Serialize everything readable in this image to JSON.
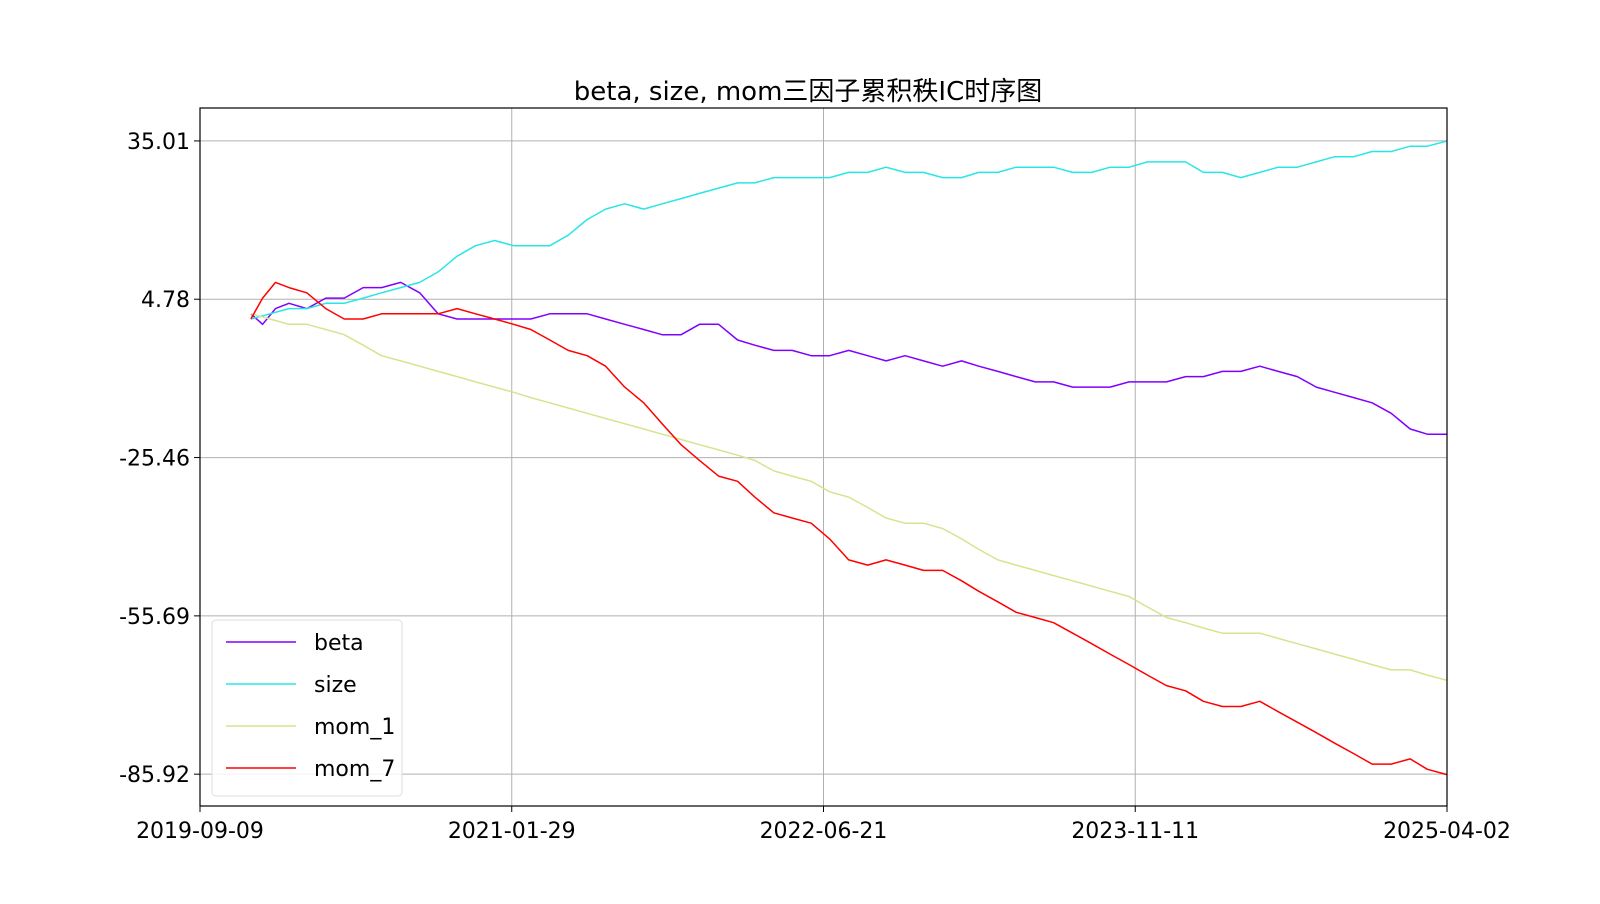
{
  "chart_data": {
    "type": "line",
    "title": "beta, size, mom三因子累积秩IC时序图",
    "xlabel": "",
    "ylabel": "",
    "x_ticks": [
      "2019-09-09",
      "2021-01-29",
      "2022-06-21",
      "2023-11-11",
      "2025-04-02"
    ],
    "y_ticks": [
      35.01,
      4.78,
      -25.46,
      -55.69,
      -85.92
    ],
    "y_tick_labels": [
      "35.01",
      "4.78",
      "-25.46",
      "-55.69",
      "-85.92"
    ],
    "xlim": [
      "2019-09-09",
      "2025-04-02"
    ],
    "ylim": [
      -92,
      41.3
    ],
    "grid": true,
    "legend_position": "lower-left",
    "series": [
      {
        "name": "beta",
        "color": "#8000ff",
        "points": [
          [
            "2019-12-01",
            2
          ],
          [
            "2019-12-20",
            0
          ],
          [
            "2020-01-10",
            3
          ],
          [
            "2020-02-01",
            4
          ],
          [
            "2020-03-01",
            3
          ],
          [
            "2020-04-01",
            5
          ],
          [
            "2020-05-01",
            5
          ],
          [
            "2020-06-01",
            7
          ],
          [
            "2020-07-01",
            7
          ],
          [
            "2020-08-01",
            8
          ],
          [
            "2020-09-01",
            6
          ],
          [
            "2020-10-01",
            2
          ],
          [
            "2020-11-01",
            1
          ],
          [
            "2020-12-01",
            1
          ],
          [
            "2021-01-01",
            1
          ],
          [
            "2021-02-01",
            1
          ],
          [
            "2021-03-01",
            1
          ],
          [
            "2021-04-01",
            2
          ],
          [
            "2021-05-01",
            2
          ],
          [
            "2021-06-01",
            2
          ],
          [
            "2021-07-01",
            1
          ],
          [
            "2021-08-01",
            0
          ],
          [
            "2021-09-01",
            -1
          ],
          [
            "2021-10-01",
            -2
          ],
          [
            "2021-11-01",
            -2
          ],
          [
            "2021-12-01",
            0
          ],
          [
            "2022-01-01",
            0
          ],
          [
            "2022-02-01",
            -3
          ],
          [
            "2022-03-01",
            -4
          ],
          [
            "2022-04-01",
            -5
          ],
          [
            "2022-05-01",
            -5
          ],
          [
            "2022-06-01",
            -6
          ],
          [
            "2022-07-01",
            -6
          ],
          [
            "2022-08-01",
            -5
          ],
          [
            "2022-09-01",
            -6
          ],
          [
            "2022-10-01",
            -7
          ],
          [
            "2022-11-01",
            -6
          ],
          [
            "2022-12-01",
            -7
          ],
          [
            "2023-01-01",
            -8
          ],
          [
            "2023-02-01",
            -7
          ],
          [
            "2023-03-01",
            -8
          ],
          [
            "2023-04-01",
            -9
          ],
          [
            "2023-05-01",
            -10
          ],
          [
            "2023-06-01",
            -11
          ],
          [
            "2023-07-01",
            -11
          ],
          [
            "2023-08-01",
            -12
          ],
          [
            "2023-09-01",
            -12
          ],
          [
            "2023-10-01",
            -12
          ],
          [
            "2023-11-01",
            -11
          ],
          [
            "2023-12-01",
            -11
          ],
          [
            "2024-01-01",
            -11
          ],
          [
            "2024-02-01",
            -10
          ],
          [
            "2024-03-01",
            -10
          ],
          [
            "2024-04-01",
            -9
          ],
          [
            "2024-05-01",
            -9
          ],
          [
            "2024-06-01",
            -8
          ],
          [
            "2024-07-01",
            -9
          ],
          [
            "2024-08-01",
            -10
          ],
          [
            "2024-09-01",
            -12
          ],
          [
            "2024-10-01",
            -13
          ],
          [
            "2024-11-01",
            -14
          ],
          [
            "2024-12-01",
            -15
          ],
          [
            "2025-01-01",
            -17
          ],
          [
            "2025-02-01",
            -20
          ],
          [
            "2025-03-01",
            -21
          ],
          [
            "2025-04-02",
            -21
          ]
        ]
      },
      {
        "name": "size",
        "color": "#29e6e6",
        "points": [
          [
            "2019-12-01",
            1
          ],
          [
            "2020-01-01",
            2
          ],
          [
            "2020-02-01",
            3
          ],
          [
            "2020-03-01",
            3
          ],
          [
            "2020-04-01",
            4
          ],
          [
            "2020-05-01",
            4
          ],
          [
            "2020-06-01",
            5
          ],
          [
            "2020-07-01",
            6
          ],
          [
            "2020-08-01",
            7
          ],
          [
            "2020-09-01",
            8
          ],
          [
            "2020-10-01",
            10
          ],
          [
            "2020-11-01",
            13
          ],
          [
            "2020-12-01",
            15
          ],
          [
            "2021-01-01",
            16
          ],
          [
            "2021-02-01",
            15
          ],
          [
            "2021-03-01",
            15
          ],
          [
            "2021-04-01",
            15
          ],
          [
            "2021-05-01",
            17
          ],
          [
            "2021-06-01",
            20
          ],
          [
            "2021-07-01",
            22
          ],
          [
            "2021-08-01",
            23
          ],
          [
            "2021-09-01",
            22
          ],
          [
            "2021-10-01",
            23
          ],
          [
            "2021-11-01",
            24
          ],
          [
            "2021-12-01",
            25
          ],
          [
            "2022-01-01",
            26
          ],
          [
            "2022-02-01",
            27
          ],
          [
            "2022-03-01",
            27
          ],
          [
            "2022-04-01",
            28
          ],
          [
            "2022-05-01",
            28
          ],
          [
            "2022-06-01",
            28
          ],
          [
            "2022-07-01",
            28
          ],
          [
            "2022-08-01",
            29
          ],
          [
            "2022-09-01",
            29
          ],
          [
            "2022-10-01",
            30
          ],
          [
            "2022-11-01",
            29
          ],
          [
            "2022-12-01",
            29
          ],
          [
            "2023-01-01",
            28
          ],
          [
            "2023-02-01",
            28
          ],
          [
            "2023-03-01",
            29
          ],
          [
            "2023-04-01",
            29
          ],
          [
            "2023-05-01",
            30
          ],
          [
            "2023-06-01",
            30
          ],
          [
            "2023-07-01",
            30
          ],
          [
            "2023-08-01",
            29
          ],
          [
            "2023-09-01",
            29
          ],
          [
            "2023-10-01",
            30
          ],
          [
            "2023-11-01",
            30
          ],
          [
            "2023-12-01",
            31
          ],
          [
            "2024-01-01",
            31
          ],
          [
            "2024-02-01",
            31
          ],
          [
            "2024-03-01",
            29
          ],
          [
            "2024-04-01",
            29
          ],
          [
            "2024-05-01",
            28
          ],
          [
            "2024-06-01",
            29
          ],
          [
            "2024-07-01",
            30
          ],
          [
            "2024-08-01",
            30
          ],
          [
            "2024-09-01",
            31
          ],
          [
            "2024-10-01",
            32
          ],
          [
            "2024-11-01",
            32
          ],
          [
            "2024-12-01",
            33
          ],
          [
            "2025-01-01",
            33
          ],
          [
            "2025-02-01",
            34
          ],
          [
            "2025-03-01",
            34
          ],
          [
            "2025-04-02",
            35
          ]
        ]
      },
      {
        "name": "mom_1",
        "color": "#d2e68f",
        "points": [
          [
            "2019-12-01",
            2
          ],
          [
            "2020-01-01",
            1
          ],
          [
            "2020-02-01",
            0
          ],
          [
            "2020-03-01",
            0
          ],
          [
            "2020-04-01",
            -1
          ],
          [
            "2020-05-01",
            -2
          ],
          [
            "2020-06-01",
            -4
          ],
          [
            "2020-07-01",
            -6
          ],
          [
            "2020-08-01",
            -7
          ],
          [
            "2020-09-01",
            -8
          ],
          [
            "2020-10-01",
            -9
          ],
          [
            "2020-11-01",
            -10
          ],
          [
            "2020-12-01",
            -11
          ],
          [
            "2021-01-01",
            -12
          ],
          [
            "2021-02-01",
            -13
          ],
          [
            "2021-03-01",
            -14
          ],
          [
            "2021-04-01",
            -15
          ],
          [
            "2021-05-01",
            -16
          ],
          [
            "2021-06-01",
            -17
          ],
          [
            "2021-07-01",
            -18
          ],
          [
            "2021-08-01",
            -19
          ],
          [
            "2021-09-01",
            -20
          ],
          [
            "2021-10-01",
            -21
          ],
          [
            "2021-11-01",
            -22
          ],
          [
            "2021-12-01",
            -23
          ],
          [
            "2022-01-01",
            -24
          ],
          [
            "2022-02-01",
            -25
          ],
          [
            "2022-03-01",
            -26
          ],
          [
            "2022-04-01",
            -28
          ],
          [
            "2022-05-01",
            -29
          ],
          [
            "2022-06-01",
            -30
          ],
          [
            "2022-07-01",
            -32
          ],
          [
            "2022-08-01",
            -33
          ],
          [
            "2022-09-01",
            -35
          ],
          [
            "2022-10-01",
            -37
          ],
          [
            "2022-11-01",
            -38
          ],
          [
            "2022-12-01",
            -38
          ],
          [
            "2023-01-01",
            -39
          ],
          [
            "2023-02-01",
            -41
          ],
          [
            "2023-03-01",
            -43
          ],
          [
            "2023-04-01",
            -45
          ],
          [
            "2023-05-01",
            -46
          ],
          [
            "2023-06-01",
            -47
          ],
          [
            "2023-07-01",
            -48
          ],
          [
            "2023-08-01",
            -49
          ],
          [
            "2023-09-01",
            -50
          ],
          [
            "2023-10-01",
            -51
          ],
          [
            "2023-11-01",
            -52
          ],
          [
            "2023-12-01",
            -54
          ],
          [
            "2024-01-01",
            -56
          ],
          [
            "2024-02-01",
            -57
          ],
          [
            "2024-03-01",
            -58
          ],
          [
            "2024-04-01",
            -59
          ],
          [
            "2024-05-01",
            -59
          ],
          [
            "2024-06-01",
            -59
          ],
          [
            "2024-07-01",
            -60
          ],
          [
            "2024-08-01",
            -61
          ],
          [
            "2024-09-01",
            -62
          ],
          [
            "2024-10-01",
            -63
          ],
          [
            "2024-11-01",
            -64
          ],
          [
            "2024-12-01",
            -65
          ],
          [
            "2025-01-01",
            -66
          ],
          [
            "2025-02-01",
            -66
          ],
          [
            "2025-03-01",
            -67
          ],
          [
            "2025-04-02",
            -68
          ]
        ]
      },
      {
        "name": "mom_7",
        "color": "#ff0000",
        "points": [
          [
            "2019-12-01",
            1
          ],
          [
            "2019-12-20",
            5
          ],
          [
            "2020-01-10",
            8
          ],
          [
            "2020-02-01",
            7
          ],
          [
            "2020-03-01",
            6
          ],
          [
            "2020-04-01",
            3
          ],
          [
            "2020-05-01",
            1
          ],
          [
            "2020-06-01",
            1
          ],
          [
            "2020-07-01",
            2
          ],
          [
            "2020-08-01",
            2
          ],
          [
            "2020-09-01",
            2
          ],
          [
            "2020-10-01",
            2
          ],
          [
            "2020-11-01",
            3
          ],
          [
            "2020-12-01",
            2
          ],
          [
            "2021-01-01",
            1
          ],
          [
            "2021-02-01",
            0
          ],
          [
            "2021-03-01",
            -1
          ],
          [
            "2021-04-01",
            -3
          ],
          [
            "2021-05-01",
            -5
          ],
          [
            "2021-06-01",
            -6
          ],
          [
            "2021-07-01",
            -8
          ],
          [
            "2021-08-01",
            -12
          ],
          [
            "2021-09-01",
            -15
          ],
          [
            "2021-10-01",
            -19
          ],
          [
            "2021-11-01",
            -23
          ],
          [
            "2021-12-01",
            -26
          ],
          [
            "2022-01-01",
            -29
          ],
          [
            "2022-02-01",
            -30
          ],
          [
            "2022-03-01",
            -33
          ],
          [
            "2022-04-01",
            -36
          ],
          [
            "2022-05-01",
            -37
          ],
          [
            "2022-06-01",
            -38
          ],
          [
            "2022-07-01",
            -41
          ],
          [
            "2022-08-01",
            -45
          ],
          [
            "2022-09-01",
            -46
          ],
          [
            "2022-10-01",
            -45
          ],
          [
            "2022-11-01",
            -46
          ],
          [
            "2022-12-01",
            -47
          ],
          [
            "2023-01-01",
            -47
          ],
          [
            "2023-02-01",
            -49
          ],
          [
            "2023-03-01",
            -51
          ],
          [
            "2023-04-01",
            -53
          ],
          [
            "2023-05-01",
            -55
          ],
          [
            "2023-06-01",
            -56
          ],
          [
            "2023-07-01",
            -57
          ],
          [
            "2023-08-01",
            -59
          ],
          [
            "2023-09-01",
            -61
          ],
          [
            "2023-10-01",
            -63
          ],
          [
            "2023-11-01",
            -65
          ],
          [
            "2023-12-01",
            -67
          ],
          [
            "2024-01-01",
            -69
          ],
          [
            "2024-02-01",
            -70
          ],
          [
            "2024-03-01",
            -72
          ],
          [
            "2024-04-01",
            -73
          ],
          [
            "2024-05-01",
            -73
          ],
          [
            "2024-06-01",
            -72
          ],
          [
            "2024-07-01",
            -74
          ],
          [
            "2024-08-01",
            -76
          ],
          [
            "2024-09-01",
            -78
          ],
          [
            "2024-10-01",
            -80
          ],
          [
            "2024-11-01",
            -82
          ],
          [
            "2024-12-01",
            -84
          ],
          [
            "2025-01-01",
            -84
          ],
          [
            "2025-02-01",
            -83
          ],
          [
            "2025-03-01",
            -85
          ],
          [
            "2025-04-02",
            -86
          ]
        ]
      }
    ]
  }
}
